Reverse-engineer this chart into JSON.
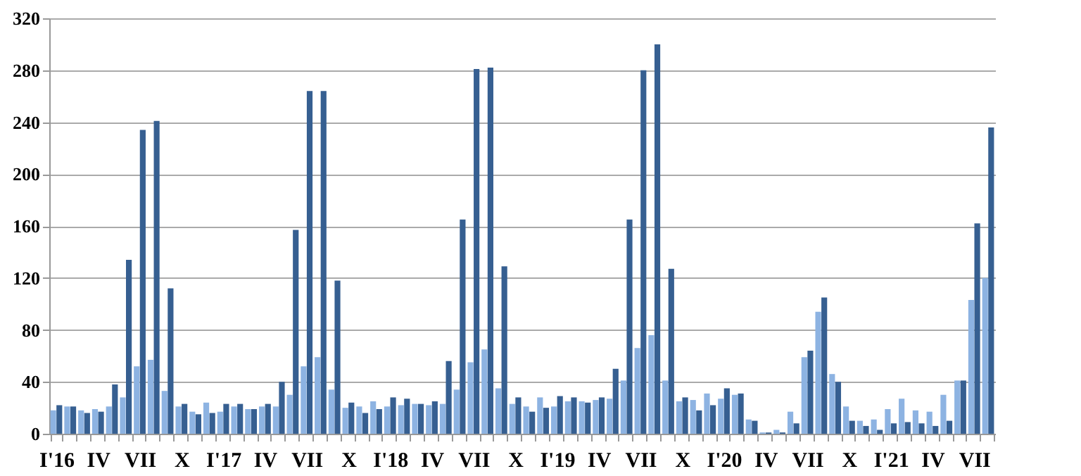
{
  "chart_data": {
    "type": "bar",
    "categories": [
      "I'16",
      null,
      null,
      "IV",
      null,
      null,
      "VII",
      null,
      null,
      "X",
      null,
      null,
      "I'17",
      null,
      null,
      "IV",
      null,
      null,
      "VII",
      null,
      null,
      "X",
      null,
      null,
      "I'18",
      null,
      null,
      "IV",
      null,
      null,
      "VII",
      null,
      null,
      "X",
      null,
      null,
      "I'19",
      null,
      null,
      "IV",
      null,
      null,
      "VII",
      null,
      null,
      "X",
      null,
      null,
      "I'20",
      null,
      null,
      "IV",
      null,
      null,
      "VII",
      null,
      null,
      "X",
      null,
      null,
      "I'21",
      null,
      null,
      "IV",
      null,
      null,
      "VII",
      null
    ],
    "series": [
      {
        "color": "#8db3e2",
        "values": [
          18,
          21,
          18,
          19,
          21,
          28,
          52,
          57,
          33,
          21,
          17,
          24,
          17,
          21,
          19,
          21,
          21,
          30,
          52,
          59,
          34,
          20,
          21,
          25,
          21,
          22,
          23,
          22,
          23,
          34,
          55,
          65,
          35,
          23,
          21,
          28,
          21,
          25,
          25,
          26,
          27,
          41,
          66,
          76,
          41,
          25,
          26,
          31,
          27,
          30,
          11,
          1,
          3,
          17,
          59,
          94,
          46,
          21,
          10,
          11,
          19,
          27,
          18,
          17,
          30,
          41,
          103,
          120
        ]
      },
      {
        "color": "#365f91",
        "values": [
          22,
          21,
          16,
          17,
          38,
          134,
          234,
          241,
          112,
          23,
          15,
          16,
          23,
          23,
          19,
          23,
          40,
          157,
          264,
          264,
          118,
          24,
          16,
          19,
          28,
          27,
          23,
          25,
          56,
          165,
          281,
          282,
          129,
          28,
          17,
          20,
          29,
          28,
          24,
          28,
          50,
          165,
          280,
          300,
          127,
          28,
          18,
          22,
          35,
          31,
          10,
          1,
          1,
          8,
          64,
          105,
          40,
          10,
          6,
          3,
          8,
          9,
          8,
          6,
          10,
          41,
          162,
          236
        ]
      }
    ],
    "ylim": [
      0,
      320
    ],
    "yticks": [
      0,
      40,
      80,
      120,
      160,
      200,
      240,
      280,
      320
    ],
    "grid": "y"
  }
}
